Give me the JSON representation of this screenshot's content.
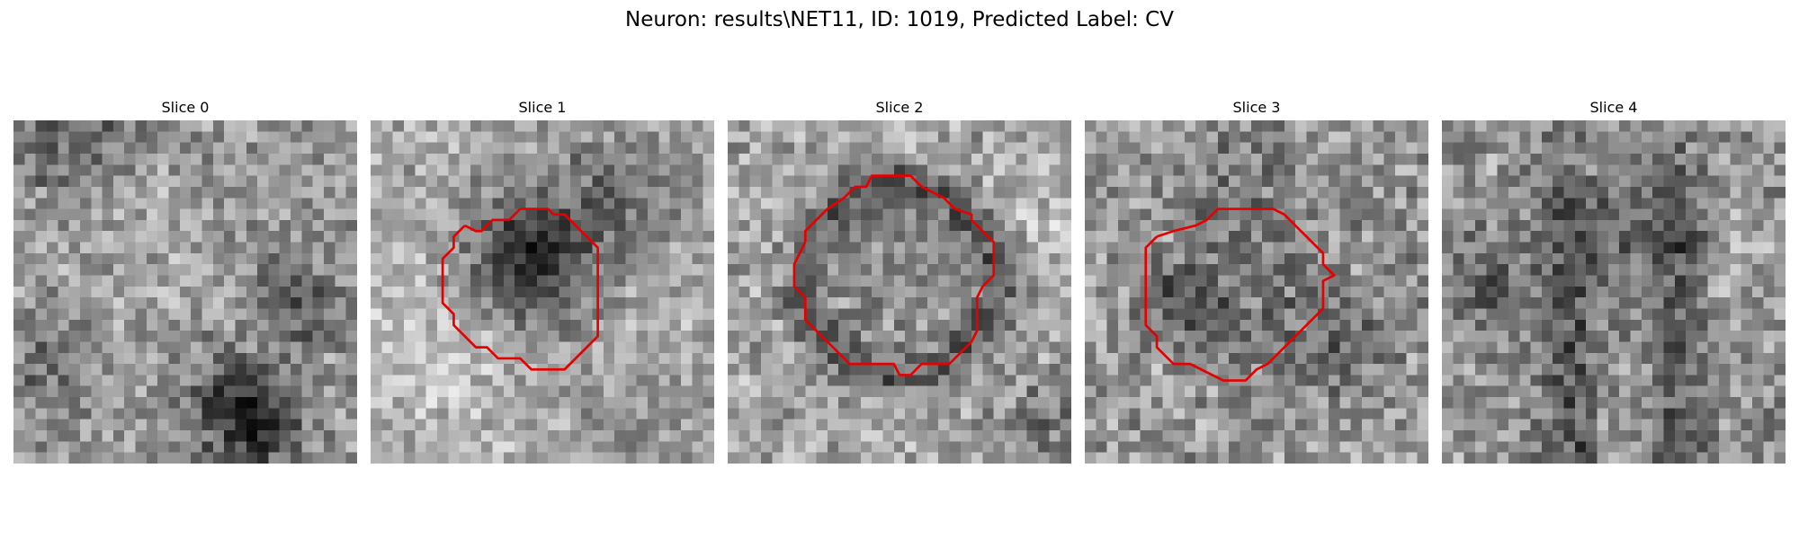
{
  "figure": {
    "title": "Neuron: results\\NET11, ID: 1019, Predicted Label: CV"
  },
  "colors": {
    "contour": "#e60000",
    "background": "#ffffff"
  },
  "slices": [
    {
      "label": "Slice 0",
      "has_contour": false
    },
    {
      "label": "Slice 1",
      "has_contour": true
    },
    {
      "label": "Slice 2",
      "has_contour": true
    },
    {
      "label": "Slice 3",
      "has_contour": true
    },
    {
      "label": "Slice 4",
      "has_contour": false
    }
  ]
}
